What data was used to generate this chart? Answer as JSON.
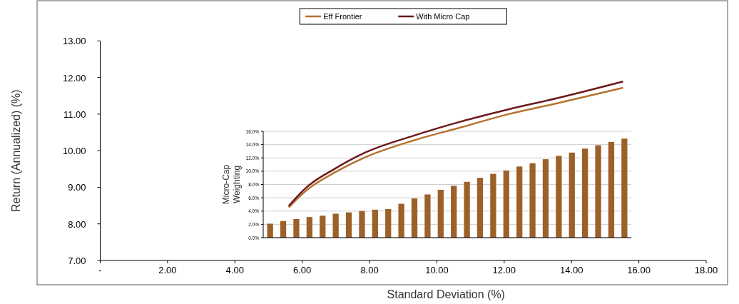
{
  "chart_data": [
    {
      "type": "line",
      "xlabel": "Standard Deviation (%)",
      "ylabel": "Return (Annualized) (%)",
      "xlim": [
        0,
        18
      ],
      "ylim": [
        7,
        13
      ],
      "xticks": [
        {
          "value": 0,
          "label": "-"
        },
        {
          "value": 2,
          "label": "2.00"
        },
        {
          "value": 4,
          "label": "4.00"
        },
        {
          "value": 6,
          "label": "6.00"
        },
        {
          "value": 8,
          "label": "8.00"
        },
        {
          "value": 10,
          "label": "10.00"
        },
        {
          "value": 12,
          "label": "12.00"
        },
        {
          "value": 14,
          "label": "14.00"
        },
        {
          "value": 16,
          "label": "16.00"
        },
        {
          "value": 18,
          "label": "18.00"
        }
      ],
      "yticks": [
        {
          "value": 7,
          "label": "7.00"
        },
        {
          "value": 8,
          "label": "8.00"
        },
        {
          "value": 9,
          "label": "9.00"
        },
        {
          "value": 10,
          "label": "10.00"
        },
        {
          "value": 11,
          "label": "11.00"
        },
        {
          "value": 12,
          "label": "12.00"
        },
        {
          "value": 13,
          "label": "13.00"
        }
      ],
      "legend": "top",
      "grid": false,
      "series": [
        {
          "name": "Eff Frontier",
          "color": "#b5722e",
          "x": [
            5.6,
            6.13,
            6.92,
            7.9,
            9.31,
            10.73,
            12.13,
            13.55,
            15.53
          ],
          "values": [
            8.45,
            8.92,
            9.38,
            9.83,
            10.28,
            10.64,
            11.0,
            11.29,
            11.72
          ]
        },
        {
          "name": "With Micro Cap",
          "color": "#6b1a1a",
          "x": [
            5.6,
            6.13,
            6.92,
            7.9,
            9.31,
            10.73,
            12.13,
            13.55,
            15.53
          ],
          "values": [
            8.49,
            9.0,
            9.48,
            9.96,
            10.41,
            10.8,
            11.13,
            11.43,
            11.89
          ]
        }
      ]
    },
    {
      "type": "bar",
      "ylabel": "Micro-Cap\nWeighting",
      "ylim": [
        0,
        16
      ],
      "grid": "y",
      "color": "#9c6029",
      "yticks": [
        {
          "value": 0,
          "label": "0.0%"
        },
        {
          "value": 2,
          "label": "2.0%"
        },
        {
          "value": 4,
          "label": "4.0%"
        },
        {
          "value": 6,
          "label": "6.0%"
        },
        {
          "value": 8,
          "label": "8.0%"
        },
        {
          "value": 10,
          "label": "10.0%"
        },
        {
          "value": 12,
          "label": "12.0%"
        },
        {
          "value": 14,
          "label": "14.0%"
        },
        {
          "value": 16,
          "label": "16.0%"
        }
      ],
      "categories": [
        null,
        null,
        null,
        null,
        null,
        null,
        null,
        null,
        null,
        null,
        null,
        null,
        null,
        null,
        null,
        null,
        null,
        null,
        null,
        null,
        null,
        null,
        null,
        null,
        null,
        null,
        null,
        null
      ],
      "values": [
        2.1,
        2.5,
        2.8,
        3.1,
        3.3,
        3.6,
        3.8,
        4.0,
        4.2,
        4.3,
        5.1,
        5.9,
        6.5,
        7.2,
        7.8,
        8.4,
        9.0,
        9.6,
        10.1,
        10.7,
        11.2,
        11.8,
        12.3,
        12.8,
        13.4,
        13.9,
        14.4,
        14.9
      ]
    }
  ]
}
